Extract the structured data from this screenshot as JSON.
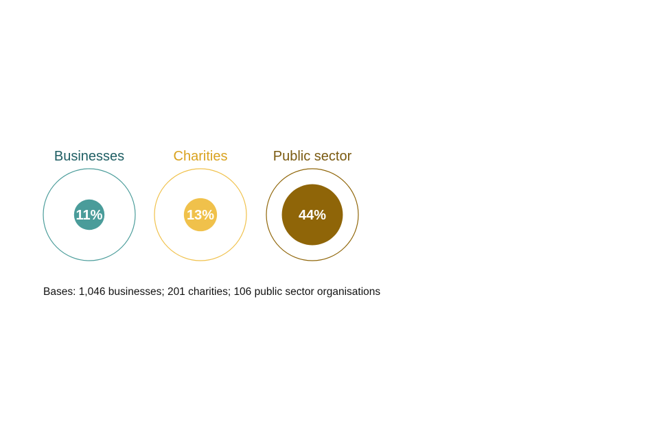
{
  "chart_data": {
    "type": "bubble",
    "categories": [
      "Businesses",
      "Charities",
      "Public sector"
    ],
    "values": [
      11,
      13,
      44
    ],
    "labels": [
      "11%",
      "13%",
      "44%"
    ],
    "unit": "%",
    "max_value": 100,
    "colors": {
      "Businesses": "#4a9c9a",
      "Charities": "#f0c14b",
      "Public sector": "#8f6508"
    },
    "title_colors": {
      "Businesses": "#1e5e63",
      "Charities": "#d9a21e",
      "Public sector": "#7a5a10"
    },
    "legend": "none",
    "grid": false
  },
  "footnote": "Bases: 1,046 businesses; 201 charities; 106 public sector organisations"
}
